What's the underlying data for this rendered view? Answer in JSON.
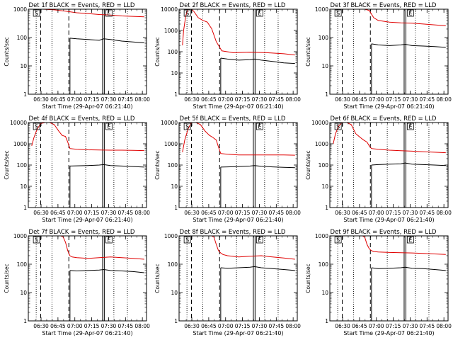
{
  "colors": {
    "events": "#000000",
    "lld": "#e00000",
    "axis": "#000000",
    "background": "#ffffff"
  },
  "chart_data": [
    {
      "type": "line",
      "title": "Det 1f BLACK = Events, RED = LLD",
      "xlabel": "Start Time (29-Apr-07 06:21:40)",
      "ylabel": "Counts/sec",
      "yscale": "log",
      "ylim": [
        1,
        1000
      ],
      "yticks": [
        1,
        10,
        100,
        1000
      ],
      "ytick_labels": [
        "1",
        "10",
        "100",
        "1000"
      ],
      "xlim_minutes": [
        -3,
        102
      ],
      "xticks_minutes": [
        8.33,
        23.33,
        38.33,
        53.33,
        68.33,
        83.33,
        98.33
      ],
      "xtick_labels": [
        "06:30",
        "06:45",
        "07:00",
        "07:15",
        "07:30",
        "07:45",
        "08:00"
      ],
      "dotted_markers_min": [
        4,
        18,
        48,
        73,
        85
      ],
      "dashed_markers_min": [
        8,
        33
      ],
      "solid_markers_min": [
        63,
        64.5
      ],
      "flags": [
        "S",
        "E"
      ],
      "series": [
        {
          "name": "LLD",
          "color": "red",
          "x": [
            0,
            2,
            4,
            7,
            10,
            20,
            30,
            40,
            50,
            60,
            70,
            80,
            90,
            100
          ],
          "values": [
            1000,
            1000,
            1000,
            1000,
            1000,
            950,
            850,
            750,
            700,
            650,
            620,
            580,
            560,
            540
          ]
        },
        {
          "name": "Events",
          "color": "black",
          "x": [
            34,
            40,
            50,
            60,
            64,
            70,
            80,
            90,
            100
          ],
          "values": [
            95,
            90,
            85,
            80,
            90,
            85,
            75,
            70,
            65
          ]
        }
      ]
    },
    {
      "type": "line",
      "title": "Det 2f BLACK = Events, RED = LLD",
      "xlabel": "Start Time (29-Apr-07 06:21:40)",
      "ylabel": "Counts/sec",
      "yscale": "log",
      "ylim": [
        1,
        10000
      ],
      "yticks": [
        1,
        10,
        100,
        1000,
        10000
      ],
      "ytick_labels": [
        "1",
        "10",
        "100",
        "1000",
        "10000"
      ],
      "xlim_minutes": [
        -3,
        102
      ],
      "xticks_minutes": [
        8.33,
        23.33,
        38.33,
        53.33,
        68.33,
        83.33,
        98.33
      ],
      "xtick_labels": [
        "06:30",
        "06:45",
        "07:00",
        "07:15",
        "07:30",
        "07:45",
        "08:00"
      ],
      "dotted_markers_min": [
        4,
        18,
        48,
        73,
        85
      ],
      "dashed_markers_min": [
        8,
        33
      ],
      "solid_markers_min": [
        63,
        64.5
      ],
      "flags": [
        "S",
        "E"
      ],
      "series": [
        {
          "name": "LLD",
          "color": "red",
          "x": [
            0,
            1,
            3,
            5,
            8,
            10,
            14,
            18,
            22,
            26,
            30,
            35,
            45,
            60,
            75,
            90,
            100
          ],
          "values": [
            200,
            1000,
            5000,
            10000,
            10000,
            8000,
            4000,
            3000,
            2500,
            1200,
            300,
            110,
            90,
            95,
            90,
            80,
            70
          ]
        },
        {
          "name": "Events",
          "color": "black",
          "x": [
            34,
            40,
            50,
            60,
            64,
            70,
            80,
            90,
            100
          ],
          "values": [
            50,
            45,
            40,
            42,
            45,
            40,
            35,
            30,
            28
          ]
        }
      ]
    },
    {
      "type": "line",
      "title": "Det 3f BLACK = Events, RED = LLD",
      "xlabel": "Start Time (29-Apr-07 06:21:40)",
      "ylabel": "Counts/sec",
      "yscale": "log",
      "ylim": [
        1,
        1000
      ],
      "yticks": [
        1,
        10,
        100,
        1000
      ],
      "ytick_labels": [
        "1",
        "10",
        "100",
        "1000"
      ],
      "xlim_minutes": [
        -3,
        102
      ],
      "xticks_minutes": [
        8.33,
        23.33,
        38.33,
        53.33,
        68.33,
        83.33,
        98.33
      ],
      "xtick_labels": [
        "06:30",
        "06:45",
        "07:00",
        "07:15",
        "07:30",
        "07:45",
        "08:00"
      ],
      "dotted_markers_min": [
        4,
        18,
        48,
        73,
        85
      ],
      "dashed_markers_min": [
        8,
        33
      ],
      "solid_markers_min": [
        63,
        64.5
      ],
      "flags": [
        "S",
        "E"
      ],
      "series": [
        {
          "name": "LLD",
          "color": "red",
          "x": [
            0,
            8,
            16,
            22,
            24,
            28,
            32,
            36,
            40,
            50,
            60,
            70,
            80,
            90,
            100
          ],
          "values": [
            1000,
            1000,
            1000,
            1000,
            1000,
            1000,
            900,
            500,
            400,
            350,
            330,
            320,
            300,
            280,
            260
          ]
        },
        {
          "name": "Events",
          "color": "black",
          "x": [
            34,
            40,
            50,
            60,
            64,
            70,
            80,
            90,
            100
          ],
          "values": [
            60,
            55,
            52,
            55,
            58,
            52,
            50,
            48,
            45
          ]
        }
      ]
    },
    {
      "type": "line",
      "title": "Det 4f BLACK = Events, RED = LLD",
      "xlabel": "Start Time (29-Apr-07 06:21:40)",
      "ylabel": "Counts/sec",
      "yscale": "log",
      "ylim": [
        1,
        10000
      ],
      "yticks": [
        1,
        10,
        100,
        1000,
        10000
      ],
      "ytick_labels": [
        "1",
        "10",
        "100",
        "1000",
        "10000"
      ],
      "xlim_minutes": [
        -3,
        102
      ],
      "xticks_minutes": [
        8.33,
        23.33,
        38.33,
        53.33,
        68.33,
        83.33,
        98.33
      ],
      "xtick_labels": [
        "06:30",
        "06:45",
        "07:00",
        "07:15",
        "07:30",
        "07:45",
        "08:00"
      ],
      "dotted_markers_min": [
        4,
        18,
        48,
        73,
        85
      ],
      "dashed_markers_min": [
        8,
        33
      ],
      "solid_markers_min": [
        63,
        64.5
      ],
      "flags": [
        "S",
        "E"
      ],
      "series": [
        {
          "name": "LLD",
          "color": "red",
          "x": [
            0,
            2,
            5,
            8,
            12,
            16,
            20,
            24,
            27,
            30,
            32,
            34,
            40,
            50,
            60,
            70,
            80,
            90,
            100
          ],
          "values": [
            800,
            2000,
            5000,
            9000,
            10000,
            10000,
            8000,
            4000,
            2500,
            2200,
            1200,
            600,
            550,
            520,
            510,
            500,
            500,
            490,
            480
          ]
        },
        {
          "name": "Events",
          "color": "black",
          "x": [
            34,
            40,
            50,
            60,
            64,
            70,
            80,
            90,
            100
          ],
          "values": [
            90,
            92,
            95,
            100,
            105,
            95,
            90,
            85,
            80
          ]
        }
      ]
    },
    {
      "type": "line",
      "title": "Det 5f BLACK = Events, RED = LLD",
      "xlabel": "Start Time (29-Apr-07 06:21:40)",
      "ylabel": "Counts/sec",
      "yscale": "log",
      "ylim": [
        1,
        10000
      ],
      "yticks": [
        1,
        10,
        100,
        1000,
        10000
      ],
      "ytick_labels": [
        "1",
        "10",
        "100",
        "1000",
        "10000"
      ],
      "xlim_minutes": [
        -3,
        102
      ],
      "xticks_minutes": [
        8.33,
        23.33,
        38.33,
        53.33,
        68.33,
        83.33,
        98.33
      ],
      "xtick_labels": [
        "06:30",
        "06:45",
        "07:00",
        "07:15",
        "07:30",
        "07:45",
        "08:00"
      ],
      "dotted_markers_min": [
        4,
        18,
        48,
        73,
        85
      ],
      "dashed_markers_min": [
        8,
        33
      ],
      "solid_markers_min": [
        63,
        64.5
      ],
      "flags": [
        "S",
        "E"
      ],
      "series": [
        {
          "name": "LLD",
          "color": "red",
          "x": [
            0,
            2,
            5,
            8,
            12,
            16,
            20,
            24,
            27,
            30,
            32,
            34,
            40,
            50,
            60,
            70,
            80,
            90,
            100
          ],
          "values": [
            400,
            1500,
            5000,
            10000,
            10000,
            8000,
            4000,
            2500,
            2000,
            1500,
            700,
            350,
            320,
            300,
            300,
            300,
            300,
            300,
            290
          ]
        },
        {
          "name": "Events",
          "color": "black",
          "x": [
            34,
            40,
            50,
            60,
            64,
            70,
            80,
            90,
            100
          ],
          "values": [
            80,
            82,
            85,
            90,
            95,
            88,
            82,
            78,
            75
          ]
        }
      ]
    },
    {
      "type": "line",
      "title": "Det 6f BLACK = Events, RED = LLD",
      "xlabel": "Start Time (29-Apr-07 06:21:40)",
      "ylabel": "Counts/sec",
      "yscale": "log",
      "ylim": [
        1,
        10000
      ],
      "yticks": [
        1,
        10,
        100,
        1000,
        10000
      ],
      "ytick_labels": [
        "1",
        "10",
        "100",
        "1000",
        "10000"
      ],
      "xlim_minutes": [
        -3,
        102
      ],
      "xticks_minutes": [
        8.33,
        23.33,
        38.33,
        53.33,
        68.33,
        83.33,
        98.33
      ],
      "xtick_labels": [
        "06:30",
        "06:45",
        "07:00",
        "07:15",
        "07:30",
        "07:45",
        "08:00"
      ],
      "dotted_markers_min": [
        4,
        18,
        48,
        73,
        85
      ],
      "dashed_markers_min": [
        8,
        33
      ],
      "solid_markers_min": [
        63,
        64.5
      ],
      "flags": [
        "S",
        "E"
      ],
      "series": [
        {
          "name": "LLD",
          "color": "red",
          "x": [
            0,
            2,
            5,
            8,
            12,
            16,
            20,
            24,
            27,
            30,
            32,
            34,
            40,
            50,
            60,
            70,
            80,
            90,
            100
          ],
          "values": [
            1000,
            3000,
            7000,
            10000,
            10000,
            8000,
            3000,
            2000,
            1500,
            1200,
            800,
            600,
            550,
            500,
            470,
            450,
            420,
            400,
            380
          ]
        },
        {
          "name": "Events",
          "color": "black",
          "x": [
            34,
            40,
            50,
            60,
            64,
            70,
            80,
            90,
            100
          ],
          "values": [
            100,
            105,
            110,
            115,
            125,
            110,
            105,
            100,
            95
          ]
        }
      ]
    },
    {
      "type": "line",
      "title": "Det 7f BLACK = Events, RED = LLD",
      "xlabel": "Start Time (29-Apr-07 06:21:40)",
      "ylabel": "Counts/sec",
      "yscale": "log",
      "ylim": [
        1,
        1000
      ],
      "yticks": [
        1,
        10,
        100,
        1000
      ],
      "ytick_labels": [
        "1",
        "10",
        "100",
        "1000"
      ],
      "xlim_minutes": [
        -3,
        102
      ],
      "xticks_minutes": [
        8.33,
        23.33,
        38.33,
        53.33,
        68.33,
        83.33,
        98.33
      ],
      "xtick_labels": [
        "06:30",
        "06:45",
        "07:00",
        "07:15",
        "07:30",
        "07:45",
        "08:00"
      ],
      "dotted_markers_min": [
        4,
        18,
        48,
        73,
        85
      ],
      "dashed_markers_min": [
        8,
        33
      ],
      "solid_markers_min": [
        63,
        64.5
      ],
      "flags": [
        "S",
        "E"
      ],
      "series": [
        {
          "name": "LLD",
          "color": "red",
          "x": [
            0,
            8,
            16,
            22,
            26,
            28,
            30,
            32,
            34,
            36,
            40,
            50,
            60,
            70,
            80,
            90,
            100
          ],
          "values": [
            1000,
            1000,
            1000,
            1000,
            1000,
            900,
            600,
            300,
            200,
            180,
            170,
            160,
            170,
            180,
            170,
            160,
            150
          ]
        },
        {
          "name": "Events",
          "color": "black",
          "x": [
            34,
            40,
            50,
            60,
            64,
            70,
            80,
            90,
            100
          ],
          "values": [
            60,
            58,
            60,
            62,
            65,
            60,
            58,
            55,
            50
          ]
        }
      ]
    },
    {
      "type": "line",
      "title": "Det 8f BLACK = Events, RED = LLD",
      "xlabel": "Start Time (29-Apr-07 06:21:40)",
      "ylabel": "Counts/sec",
      "yscale": "log",
      "ylim": [
        1,
        1000
      ],
      "yticks": [
        1,
        10,
        100,
        1000
      ],
      "ytick_labels": [
        "1",
        "10",
        "100",
        "1000"
      ],
      "xlim_minutes": [
        -3,
        102
      ],
      "xticks_minutes": [
        8.33,
        23.33,
        38.33,
        53.33,
        68.33,
        83.33,
        98.33
      ],
      "xtick_labels": [
        "06:30",
        "06:45",
        "07:00",
        "07:15",
        "07:30",
        "07:45",
        "08:00"
      ],
      "dotted_markers_min": [
        4,
        18,
        48,
        73,
        85
      ],
      "dashed_markers_min": [
        8,
        33
      ],
      "solid_markers_min": [
        63,
        64.5
      ],
      "flags": [
        "S",
        "E"
      ],
      "series": [
        {
          "name": "LLD",
          "color": "red",
          "x": [
            0,
            8,
            16,
            22,
            26,
            28,
            30,
            32,
            34,
            36,
            40,
            50,
            60,
            70,
            80,
            90,
            100
          ],
          "values": [
            1000,
            1000,
            1000,
            1000,
            1000,
            900,
            500,
            300,
            250,
            220,
            200,
            180,
            190,
            200,
            180,
            165,
            150
          ]
        },
        {
          "name": "Events",
          "color": "black",
          "x": [
            34,
            40,
            50,
            60,
            64,
            70,
            80,
            90,
            100
          ],
          "values": [
            75,
            72,
            75,
            78,
            82,
            75,
            70,
            65,
            60
          ]
        }
      ]
    },
    {
      "type": "line",
      "title": "Det 9f BLACK = Events, RED = LLD",
      "xlabel": "Start Time (29-Apr-07 06:21:40)",
      "ylabel": "Counts/sec",
      "yscale": "log",
      "ylim": [
        1,
        1000
      ],
      "yticks": [
        1,
        10,
        100,
        1000
      ],
      "ytick_labels": [
        "1",
        "10",
        "100",
        "1000"
      ],
      "xlim_minutes": [
        -3,
        102
      ],
      "xticks_minutes": [
        8.33,
        23.33,
        38.33,
        53.33,
        68.33,
        83.33,
        98.33
      ],
      "xtick_labels": [
        "06:30",
        "06:45",
        "07:00",
        "07:15",
        "07:30",
        "07:45",
        "08:00"
      ],
      "dotted_markers_min": [
        4,
        18,
        48,
        73,
        85
      ],
      "dashed_markers_min": [
        8,
        33
      ],
      "solid_markers_min": [
        63,
        64.5
      ],
      "flags": [
        "S",
        "E"
      ],
      "series": [
        {
          "name": "LLD",
          "color": "red",
          "x": [
            0,
            8,
            16,
            22,
            26,
            28,
            30,
            32,
            34,
            36,
            40,
            50,
            60,
            70,
            80,
            90,
            100
          ],
          "values": [
            1000,
            1000,
            1000,
            1000,
            1000,
            900,
            500,
            350,
            300,
            280,
            270,
            260,
            255,
            250,
            240,
            230,
            220
          ]
        },
        {
          "name": "Events",
          "color": "black",
          "x": [
            34,
            40,
            50,
            60,
            64,
            70,
            80,
            90,
            100
          ],
          "values": [
            75,
            70,
            72,
            75,
            78,
            72,
            70,
            65,
            60
          ]
        }
      ]
    }
  ]
}
